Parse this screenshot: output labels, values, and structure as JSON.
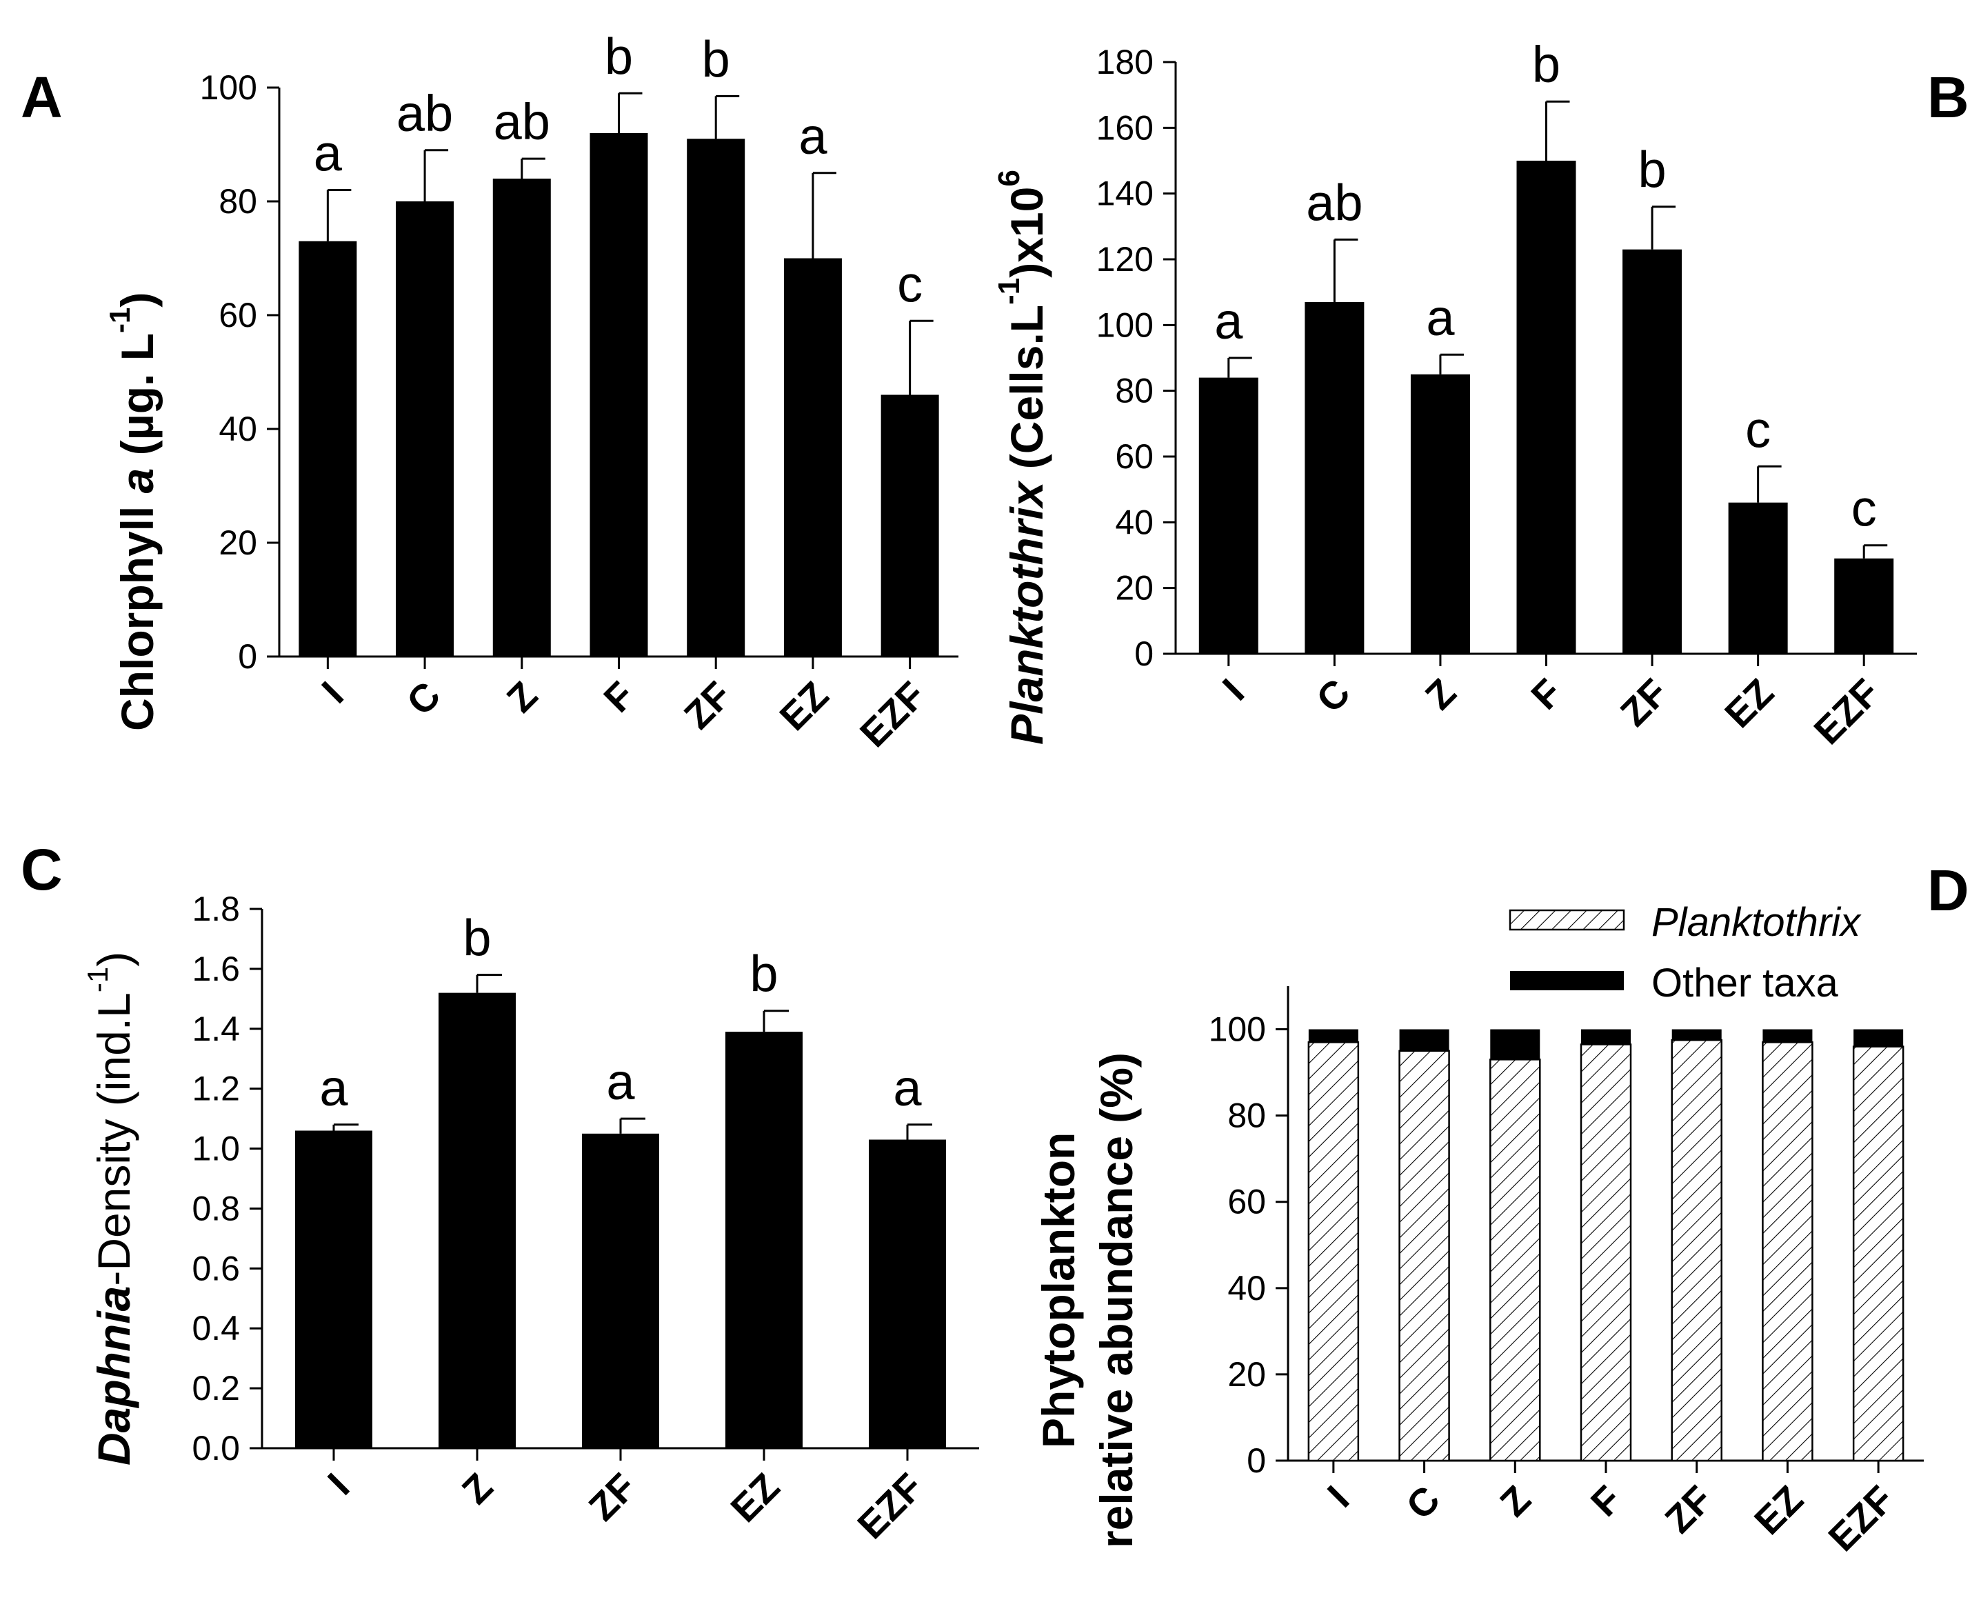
{
  "colors": {
    "bar": "#000000",
    "axis": "#000000",
    "background": "#ffffff",
    "hatch": "#000000"
  },
  "chart_data": [
    {
      "id": "A",
      "panel_label": "A",
      "type": "bar",
      "title": "",
      "ylabel_parts": [
        "Chlorphyll ",
        "a",
        " (µg. L",
        "-1",
        ")"
      ],
      "categories": [
        "I",
        "C",
        "Z",
        "F",
        "ZF",
        "EZ",
        "EZF"
      ],
      "values": [
        73,
        80,
        84,
        92,
        91,
        70,
        46
      ],
      "errors": [
        9,
        9,
        3.5,
        7,
        7.5,
        15,
        13
      ],
      "significance": [
        "a",
        "ab",
        "ab",
        "b",
        "b",
        "a",
        "c"
      ],
      "ylim": [
        0,
        100
      ],
      "yticks": [
        0,
        20,
        40,
        60,
        80,
        100
      ],
      "ytick_labels": [
        "0",
        "20",
        "40",
        "60",
        "80",
        "100"
      ]
    },
    {
      "id": "B",
      "panel_label": "B",
      "type": "bar",
      "title": "",
      "ylabel_parts": [
        "Planktothrix",
        " (Cells.L",
        "-1",
        ")x10",
        "6"
      ],
      "categories": [
        "I",
        "C",
        "Z",
        "F",
        "ZF",
        "EZ",
        "EZF"
      ],
      "values": [
        84,
        107,
        85,
        150,
        123,
        46,
        29
      ],
      "errors": [
        6,
        19,
        6,
        18,
        13,
        11,
        4
      ],
      "significance": [
        "a",
        "ab",
        "a",
        "b",
        "b",
        "c",
        "c"
      ],
      "ylim": [
        0,
        180
      ],
      "yticks": [
        0,
        20,
        40,
        60,
        80,
        100,
        120,
        140,
        160,
        180
      ],
      "ytick_labels": [
        "0",
        "20",
        "40",
        "60",
        "80",
        "100",
        "120",
        "140",
        "160",
        "180"
      ]
    },
    {
      "id": "C",
      "panel_label": "C",
      "type": "bar",
      "title": "",
      "ylabel_parts": [
        "Daphnia",
        "-Density (ind.L",
        "-1",
        ")"
      ],
      "categories": [
        "I",
        "Z",
        "ZF",
        "EZ",
        "EZF"
      ],
      "values": [
        1.06,
        1.52,
        1.05,
        1.39,
        1.03
      ],
      "errors": [
        0.02,
        0.06,
        0.05,
        0.07,
        0.05
      ],
      "significance": [
        "a",
        "b",
        "a",
        "b",
        "a"
      ],
      "ylim": [
        0,
        1.8
      ],
      "yticks": [
        0,
        0.2,
        0.4,
        0.6,
        0.8,
        1.0,
        1.2,
        1.4,
        1.6,
        1.8
      ],
      "ytick_labels": [
        "0.0",
        "0.2",
        "0.4",
        "0.6",
        "0.8",
        "1.0",
        "1.2",
        "1.4",
        "1.6",
        "1.8"
      ]
    },
    {
      "id": "D",
      "panel_label": "D",
      "type": "bar",
      "stacked": true,
      "title": "",
      "ylabel_lines": [
        "Phytoplankton",
        "relative abundance (%)"
      ],
      "categories": [
        "I",
        "C",
        "Z",
        "F",
        "ZF",
        "EZ",
        "EZF"
      ],
      "series": [
        {
          "name": "Planktothrix",
          "values": [
            97,
            95,
            93,
            96.5,
            97.5,
            97,
            96
          ]
        },
        {
          "name": "Other taxa",
          "values": [
            3,
            5,
            7,
            3.5,
            2.5,
            3,
            4
          ]
        }
      ],
      "legend_position": "top-right",
      "ylim": [
        0,
        110
      ],
      "yticks": [
        0,
        20,
        40,
        60,
        80,
        100
      ],
      "ytick_labels": [
        "0",
        "20",
        "40",
        "60",
        "80",
        "100"
      ]
    }
  ]
}
